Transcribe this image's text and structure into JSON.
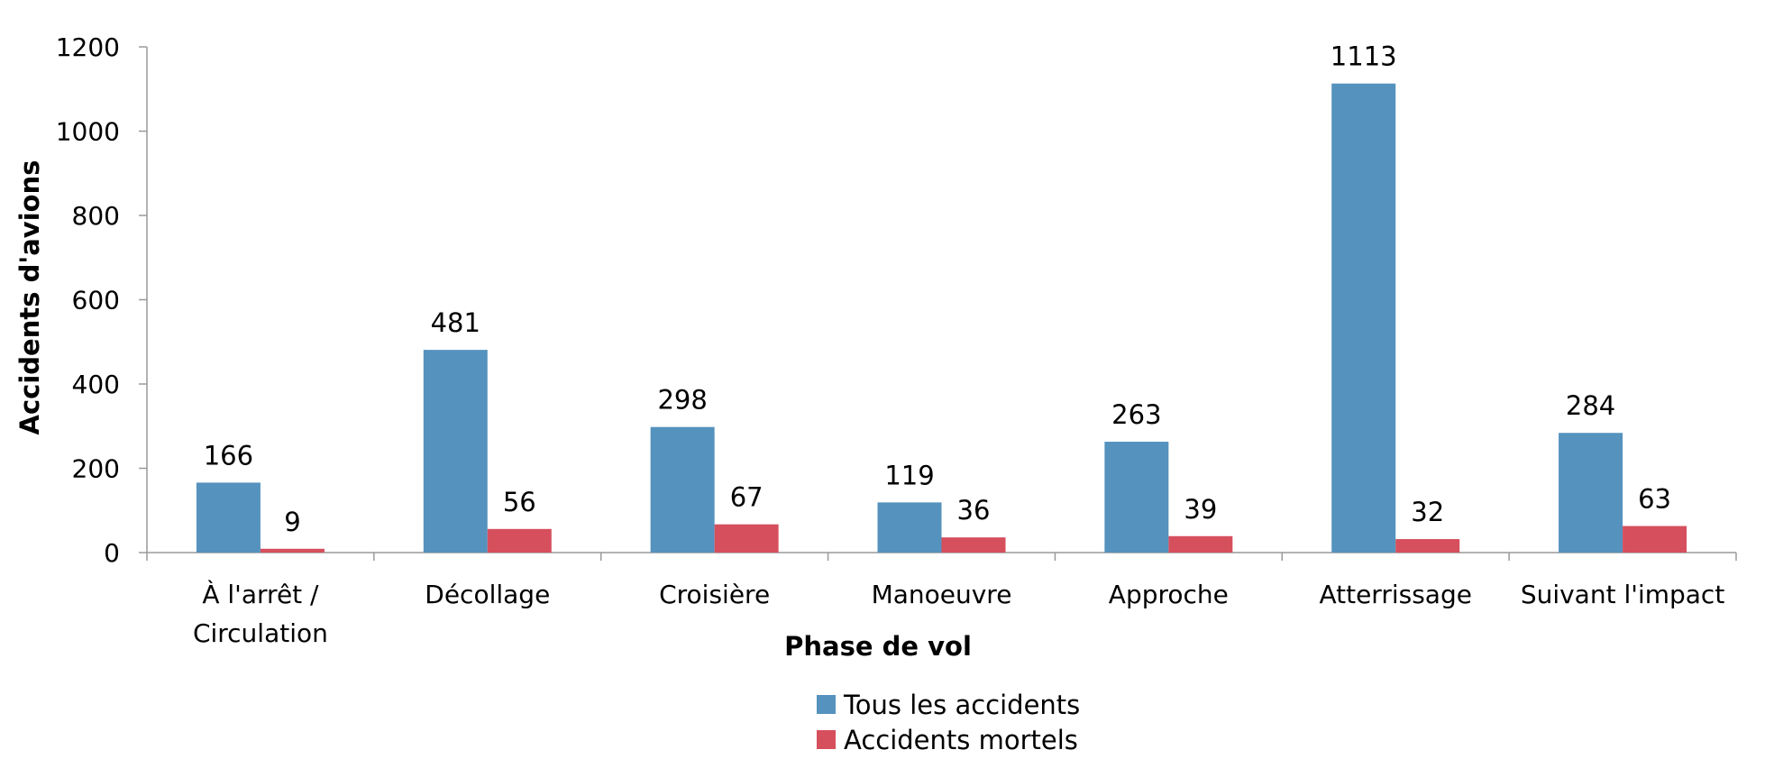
{
  "chart_data": {
    "type": "bar",
    "title": "",
    "xlabel": "Phase de vol",
    "ylabel": "Accidents d'avions",
    "ylim": [
      0,
      1200
    ],
    "yticks": [
      0,
      200,
      400,
      600,
      800,
      1000,
      1200
    ],
    "grid": false,
    "legend_position": "bottom",
    "categories": [
      [
        "À l'arrêt /",
        "Circulation"
      ],
      [
        "Décollage"
      ],
      [
        "Croisière"
      ],
      [
        "Manoeuvre"
      ],
      [
        "Approche"
      ],
      [
        "Atterrissage"
      ],
      [
        "Suivant l'impact"
      ]
    ],
    "series": [
      {
        "name": "Tous les accidents",
        "color": "#5592be",
        "values": [
          166,
          481,
          298,
          119,
          263,
          1113,
          284
        ]
      },
      {
        "name": "Accidents mortels",
        "color": "#d64f5d",
        "values": [
          9,
          56,
          67,
          36,
          39,
          32,
          63
        ]
      }
    ]
  }
}
